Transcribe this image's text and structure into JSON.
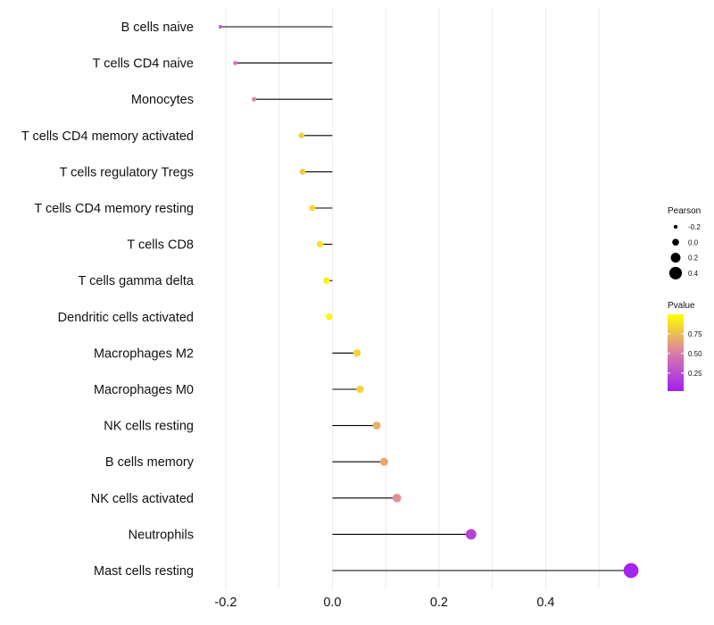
{
  "chart_data": {
    "type": "lollipop",
    "title": "",
    "xlabel": "",
    "ylabel": "",
    "xlim": [
      -0.235,
      0.575
    ],
    "xticks": [
      -0.2,
      0.0,
      0.2,
      0.4
    ],
    "xtick_labels": [
      "-0.2",
      "0.0",
      "0.2",
      "0.4"
    ],
    "grid": true,
    "legend_position": "right",
    "points": [
      {
        "category": "B cells naive",
        "pearson": -0.21,
        "pvalue": 0.35
      },
      {
        "category": "T cells CD4 naive",
        "pearson": -0.182,
        "pvalue": 0.42
      },
      {
        "category": "Monocytes",
        "pearson": -0.147,
        "pvalue": 0.55
      },
      {
        "category": "T cells CD4 memory activated",
        "pearson": -0.058,
        "pvalue": 0.82
      },
      {
        "category": "T cells regulatory  Tregs ",
        "pearson": -0.056,
        "pvalue": 0.81
      },
      {
        "category": "T cells CD4 memory resting",
        "pearson": -0.038,
        "pvalue": 0.86
      },
      {
        "category": "T cells CD8",
        "pearson": -0.023,
        "pvalue": 0.88
      },
      {
        "category": "T cells gamma delta",
        "pearson": -0.011,
        "pvalue": 0.95
      },
      {
        "category": "Dendritic cells activated",
        "pearson": -0.006,
        "pvalue": 0.98
      },
      {
        "category": "Macrophages M2",
        "pearson": 0.046,
        "pvalue": 0.84
      },
      {
        "category": "Macrophages M0",
        "pearson": 0.052,
        "pvalue": 0.83
      },
      {
        "category": "NK cells resting",
        "pearson": 0.083,
        "pvalue": 0.7
      },
      {
        "category": "B cells memory",
        "pearson": 0.097,
        "pvalue": 0.66
      },
      {
        "category": "NK cells activated",
        "pearson": 0.121,
        "pvalue": 0.58
      },
      {
        "category": "Neutrophils",
        "pearson": 0.26,
        "pvalue": 0.2
      },
      {
        "category": "Mast cells resting",
        "pearson": 0.56,
        "pvalue": 0.05
      }
    ],
    "size_legend": {
      "title": "Pearson",
      "values": [
        -0.2,
        0.0,
        0.2,
        0.4
      ],
      "labels": [
        "-0.2",
        "0.0",
        "0.2",
        "0.4"
      ]
    },
    "color_legend": {
      "title": "Pvalue",
      "ticks": [
        0.75,
        0.5,
        0.25
      ],
      "labels": [
        "0.75",
        "0.50",
        "0.25"
      ],
      "range": [
        0.02,
        1.0
      ],
      "low_color": "#a020f0",
      "mid_color": "#d97fa8",
      "high_color": "#ffff00"
    },
    "colors": {
      "stem": "#000000",
      "grid": "#ebebeb"
    }
  }
}
